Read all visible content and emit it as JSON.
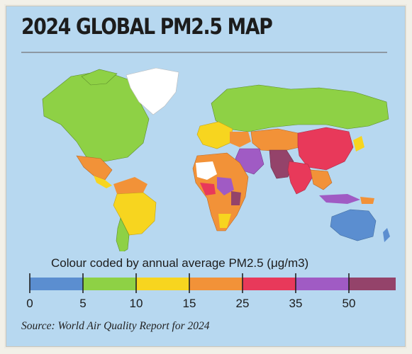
{
  "title": "2024 GLOBAL PM2.5 MAP",
  "legend": {
    "title": "Colour coded by annual average PM2.5 (μg/m3)",
    "bands": [
      {
        "from": 0,
        "to": 5,
        "color": "#5b8ed0"
      },
      {
        "from": 5,
        "to": 10,
        "color": "#8ed145"
      },
      {
        "from": 10,
        "to": 15,
        "color": "#f7d51f"
      },
      {
        "from": 15,
        "to": 25,
        "color": "#f29238"
      },
      {
        "from": 25,
        "to": 35,
        "color": "#e8395a"
      },
      {
        "from": 35,
        "to": 50,
        "color": "#a05bc4"
      },
      {
        "from": 50,
        "to": 60,
        "color": "#94436a"
      }
    ],
    "tick_labels": [
      "0",
      "5",
      "10",
      "15",
      "25",
      "35",
      "50"
    ]
  },
  "map": {
    "ocean_color": "#b7d8f0",
    "no_data_color": "#ffffff",
    "regions": [
      {
        "name": "Greenland",
        "band": "no-data"
      },
      {
        "name": "North America",
        "band": "5-10"
      },
      {
        "name": "Mexico",
        "band": "15-25"
      },
      {
        "name": "Brazil",
        "band": "10-15"
      },
      {
        "name": "Argentina",
        "band": "5-10"
      },
      {
        "name": "Scandinavia and Russia",
        "band": "5-10"
      },
      {
        "name": "Western Europe",
        "band": "10-15"
      },
      {
        "name": "Central Asia",
        "band": "15-25"
      },
      {
        "name": "China",
        "band": "25-35"
      },
      {
        "name": "India",
        "band": "25-35"
      },
      {
        "name": "Pakistan",
        "band": "50+"
      },
      {
        "name": "Middle East",
        "band": "35-50"
      },
      {
        "name": "Africa",
        "band": "15-25"
      },
      {
        "name": "Southeast Asia",
        "band": "15-25"
      },
      {
        "name": "Australia",
        "band": "0-5"
      }
    ]
  },
  "source": "Source: World Air Quality Report for 2024"
}
